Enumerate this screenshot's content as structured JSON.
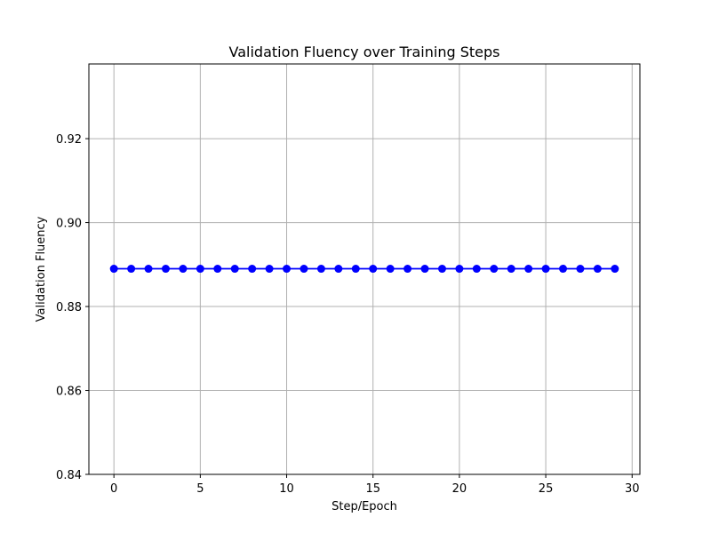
{
  "chart_data": {
    "type": "line",
    "title": "Validation Fluency over Training Steps",
    "xlabel": "Step/Epoch",
    "ylabel": "Validation Fluency",
    "xlim": [
      -1.45,
      30.45
    ],
    "ylim": [
      0.84,
      0.9378
    ],
    "xticks": [
      0,
      5,
      10,
      15,
      20,
      25,
      30
    ],
    "xtick_labels": [
      "0",
      "5",
      "10",
      "15",
      "20",
      "25",
      "30"
    ],
    "yticks": [
      0.84,
      0.86,
      0.88,
      0.9,
      0.92
    ],
    "ytick_labels": [
      "0.84",
      "0.86",
      "0.88",
      "0.90",
      "0.92"
    ],
    "grid": true,
    "series": [
      {
        "color": "#0000ff",
        "marker": "circle",
        "x": [
          0,
          1,
          2,
          3,
          4,
          5,
          6,
          7,
          8,
          9,
          10,
          11,
          12,
          13,
          14,
          15,
          16,
          17,
          18,
          19,
          20,
          21,
          22,
          23,
          24,
          25,
          26,
          27,
          28,
          29
        ],
        "values": [
          0.889,
          0.889,
          0.889,
          0.889,
          0.889,
          0.889,
          0.889,
          0.889,
          0.889,
          0.889,
          0.889,
          0.889,
          0.889,
          0.889,
          0.889,
          0.889,
          0.889,
          0.889,
          0.889,
          0.889,
          0.889,
          0.889,
          0.889,
          0.889,
          0.889,
          0.889,
          0.889,
          0.889,
          0.889,
          0.889
        ]
      }
    ]
  }
}
